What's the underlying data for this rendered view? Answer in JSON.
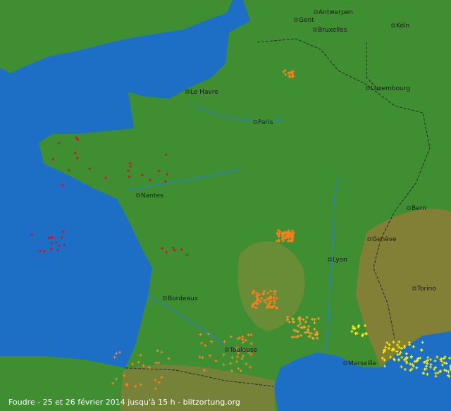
{
  "caption": "Foudre - 25 et 26 février 2014 jusqu'à 15 h - blitzortung.org",
  "cities": [
    {
      "label": "Antwerpen"
    },
    {
      "label": "Gent"
    },
    {
      "label": "Bruxelles"
    },
    {
      "label": "Köln"
    },
    {
      "label": "Le Havre"
    },
    {
      "label": "Paris"
    },
    {
      "label": "Luxembourg"
    },
    {
      "label": "Nantes"
    },
    {
      "label": "Bern"
    },
    {
      "label": "Genève"
    },
    {
      "label": "Lyon"
    },
    {
      "label": "Bordeaux"
    },
    {
      "label": "Torino"
    },
    {
      "label": "Toulouse"
    },
    {
      "label": "Marseille"
    }
  ]
}
